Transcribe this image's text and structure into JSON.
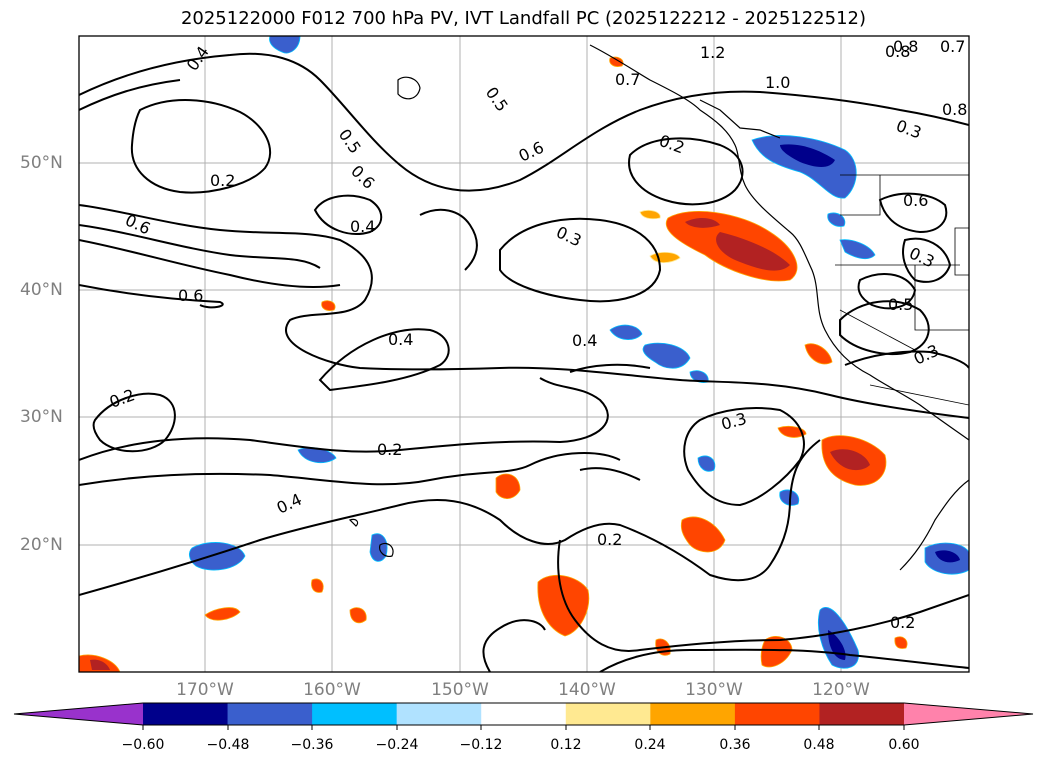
{
  "figure": {
    "title": "2025122000 F012 700 hPa PV, IVT Landfall PC (2025122212 - 2025122512)"
  },
  "axes": {
    "lat_labels": [
      "50°N",
      "40°N",
      "30°N",
      "20°N"
    ],
    "lon_labels": [
      "170°W",
      "160°W",
      "150°W",
      "140°W",
      "130°W",
      "120°W"
    ]
  },
  "colorbar": {
    "ticks": [
      "−0.60",
      "−0.48",
      "−0.36",
      "−0.24",
      "−0.12",
      "0.12",
      "0.24",
      "0.36",
      "0.48",
      "0.60"
    ],
    "colors": [
      "#9932cc",
      "#00008b",
      "#3a5fcd",
      "#00bfff",
      "#b0e2ff",
      "#ffffff",
      "#ffe991",
      "#ffa500",
      "#ff4500",
      "#b22222",
      "#ff82ab"
    ]
  },
  "contour_labels": [
    "0.4",
    "0.7",
    "0.8",
    "1.2",
    "1.0",
    "0.7",
    "0.8",
    "0.8",
    "0.5",
    "0.5",
    "0.3",
    "0.6",
    "0.6",
    "0.2",
    "0.2",
    "0.4",
    "0.6",
    "0.3",
    "0.6",
    "0.6",
    "0.4",
    "0.3",
    "0.4",
    "0.5",
    "0.3",
    "0.2",
    "0.2",
    "0.4",
    "0.3",
    "0.2",
    "0.2"
  ],
  "legend_colors": {
    "land_outline": "#000000",
    "grid": "#b0b0b0",
    "contour": "#000000"
  }
}
